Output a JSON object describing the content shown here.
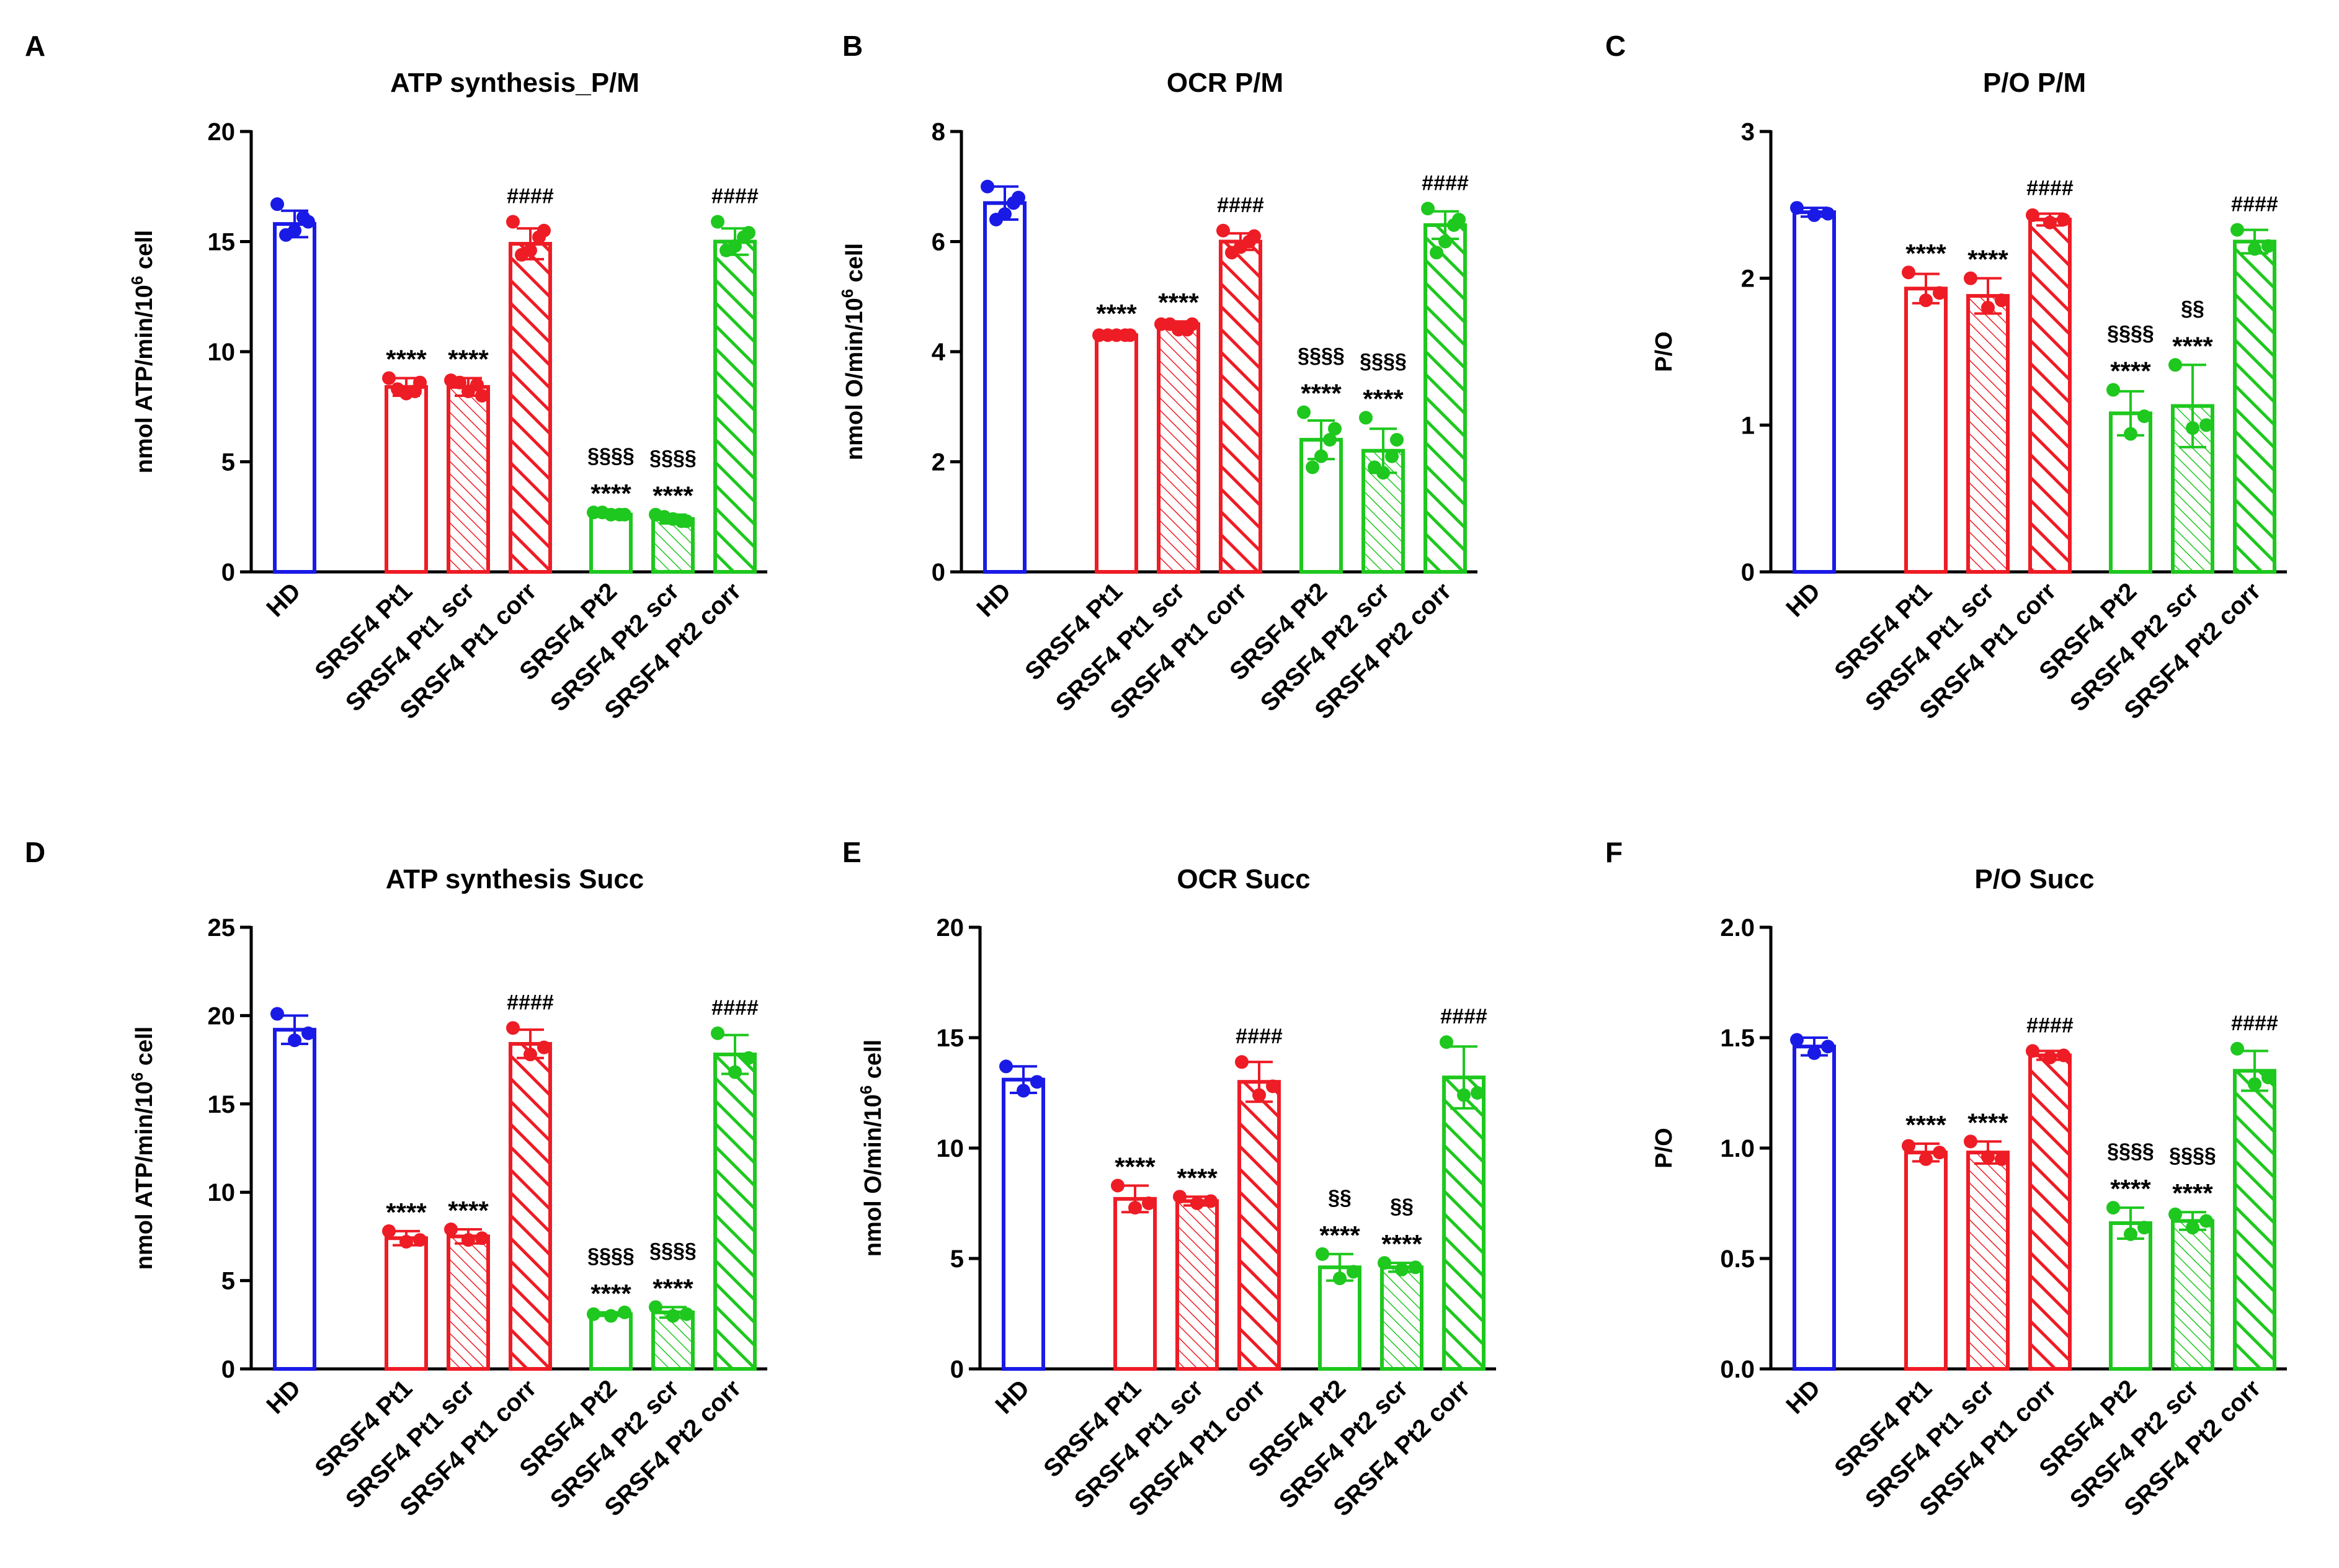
{
  "figure": {
    "categories": [
      "HD",
      "SRSF4 Pt1",
      "SRSF4 Pt1 scr",
      "SRSF4 Pt1 corr",
      "SRSF4 Pt2",
      "SRSF4 Pt2 scr",
      "SRSF4 Pt2 corr"
    ],
    "colors": {
      "hd": "#1a1ae6",
      "pt1": "#ee1c25",
      "pt2": "#1ec81e",
      "axis": "#000000"
    }
  },
  "chart_data": [
    {
      "panel": "A",
      "type": "bar",
      "title": "ATP synthesis_P/M",
      "ylabel_parts": [
        "nmol ATP/min/10",
        "6",
        " cell"
      ],
      "ylim": [
        0,
        20
      ],
      "yticks": [
        0,
        5,
        10,
        15,
        20
      ],
      "tick_decimals": 0,
      "categories": [
        "HD",
        "SRSF4 Pt1",
        "SRSF4 Pt1 scr",
        "SRSF4 Pt1 corr",
        "SRSF4 Pt2",
        "SRSF4 Pt2 scr",
        "SRSF4 Pt2 corr"
      ],
      "values": [
        15.8,
        8.4,
        8.4,
        14.9,
        2.6,
        2.4,
        15.0
      ],
      "errors": [
        0.6,
        0.4,
        0.4,
        0.7,
        0.1,
        0.2,
        0.6
      ],
      "points": [
        [
          16.7,
          15.5,
          15.9,
          15.3,
          16.1
        ],
        [
          8.8,
          8.1,
          8.6,
          8.3,
          8.2
        ],
        [
          8.7,
          8.2,
          8.0,
          8.6,
          8.5
        ],
        [
          15.9,
          14.6,
          15.5,
          14.4,
          15.2
        ],
        [
          2.7,
          2.6,
          2.6,
          2.7,
          2.6
        ],
        [
          2.6,
          2.4,
          2.3,
          2.5,
          2.3
        ],
        [
          15.9,
          14.8,
          15.4,
          14.6,
          15.2
        ]
      ],
      "annotations": [
        {
          "index": 1,
          "lines": [
            "****"
          ]
        },
        {
          "index": 2,
          "lines": [
            "****"
          ]
        },
        {
          "index": 3,
          "lines": [
            "####"
          ]
        },
        {
          "index": 4,
          "lines": [
            "§§§§",
            "****"
          ]
        },
        {
          "index": 5,
          "lines": [
            "§§§§",
            "****"
          ]
        },
        {
          "index": 6,
          "lines": [
            "####"
          ]
        }
      ]
    },
    {
      "panel": "B",
      "type": "bar",
      "title": "OCR P/M",
      "ylabel_parts": [
        "nmol O/min/10",
        "6",
        " cell"
      ],
      "ylim": [
        0,
        8
      ],
      "yticks": [
        0,
        2,
        4,
        6,
        8
      ],
      "tick_decimals": 0,
      "categories": [
        "HD",
        "SRSF4 Pt1",
        "SRSF4 Pt1 scr",
        "SRSF4 Pt1 corr",
        "SRSF4 Pt2",
        "SRSF4 Pt2 scr",
        "SRSF4 Pt2 corr"
      ],
      "values": [
        6.7,
        4.3,
        4.5,
        6.0,
        2.4,
        2.2,
        6.3
      ],
      "errors": [
        0.3,
        0.05,
        0.05,
        0.15,
        0.35,
        0.4,
        0.25
      ],
      "points": [
        [
          7.0,
          6.5,
          6.8,
          6.4,
          6.7
        ],
        [
          4.3,
          4.3,
          4.3,
          4.3,
          4.3
        ],
        [
          4.5,
          4.4,
          4.5,
          4.5,
          4.4
        ],
        [
          6.2,
          5.9,
          6.1,
          5.8,
          6.0
        ],
        [
          2.9,
          2.1,
          2.6,
          1.9,
          2.4
        ],
        [
          2.8,
          1.8,
          2.4,
          1.9,
          2.1
        ],
        [
          6.6,
          6.0,
          6.4,
          5.8,
          6.3
        ]
      ],
      "annotations": [
        {
          "index": 1,
          "lines": [
            "****"
          ]
        },
        {
          "index": 2,
          "lines": [
            "****"
          ]
        },
        {
          "index": 3,
          "lines": [
            "####"
          ]
        },
        {
          "index": 4,
          "lines": [
            "§§§§",
            "****"
          ]
        },
        {
          "index": 5,
          "lines": [
            "§§§§",
            "****"
          ]
        },
        {
          "index": 6,
          "lines": [
            "####"
          ]
        }
      ]
    },
    {
      "panel": "C",
      "type": "bar",
      "title": "P/O P/M",
      "ylabel_parts": [
        "P/O"
      ],
      "ylim": [
        0,
        3
      ],
      "yticks": [
        0,
        1,
        2,
        3
      ],
      "tick_decimals": 0,
      "categories": [
        "HD",
        "SRSF4 Pt1",
        "SRSF4 Pt1 scr",
        "SRSF4 Pt1 corr",
        "SRSF4 Pt2",
        "SRSF4 Pt2 scr",
        "SRSF4 Pt2 corr"
      ],
      "values": [
        2.45,
        1.93,
        1.88,
        2.4,
        1.08,
        1.13,
        2.25
      ],
      "errors": [
        0.03,
        0.1,
        0.12,
        0.04,
        0.15,
        0.28,
        0.08
      ],
      "points": [
        [
          2.48,
          2.43,
          2.44
        ],
        [
          2.04,
          1.85,
          1.9
        ],
        [
          2.0,
          1.8,
          1.85
        ],
        [
          2.43,
          2.38,
          2.4
        ],
        [
          1.24,
          0.94,
          1.06
        ],
        [
          1.41,
          0.98,
          1.0
        ],
        [
          2.33,
          2.2,
          2.22
        ]
      ],
      "annotations": [
        {
          "index": 1,
          "lines": [
            "****"
          ]
        },
        {
          "index": 2,
          "lines": [
            "****"
          ]
        },
        {
          "index": 3,
          "lines": [
            "####"
          ]
        },
        {
          "index": 4,
          "lines": [
            "§§§§",
            "****"
          ]
        },
        {
          "index": 5,
          "lines": [
            "§§",
            "****"
          ]
        },
        {
          "index": 6,
          "lines": [
            "####"
          ]
        }
      ]
    },
    {
      "panel": "D",
      "type": "bar",
      "title": "ATP synthesis Succ",
      "ylabel_parts": [
        "nmol ATP/min/10",
        "6",
        " cell"
      ],
      "ylim": [
        0,
        25
      ],
      "yticks": [
        0,
        5,
        10,
        15,
        20,
        25
      ],
      "tick_decimals": 0,
      "categories": [
        "HD",
        "SRSF4 Pt1",
        "SRSF4 Pt1 scr",
        "SRSF4 Pt1 corr",
        "SRSF4 Pt2",
        "SRSF4 Pt2 scr",
        "SRSF4 Pt2 corr"
      ],
      "values": [
        19.2,
        7.4,
        7.5,
        18.4,
        3.1,
        3.2,
        17.8
      ],
      "errors": [
        0.8,
        0.4,
        0.4,
        0.8,
        0.1,
        0.3,
        1.1
      ],
      "points": [
        [
          20.1,
          18.6,
          19.0
        ],
        [
          7.8,
          7.2,
          7.3
        ],
        [
          7.9,
          7.3,
          7.4
        ],
        [
          19.3,
          17.8,
          18.2
        ],
        [
          3.1,
          3.0,
          3.2
        ],
        [
          3.5,
          3.0,
          3.1
        ],
        [
          19.0,
          16.8,
          17.6
        ]
      ],
      "annotations": [
        {
          "index": 1,
          "lines": [
            "****"
          ]
        },
        {
          "index": 2,
          "lines": [
            "****"
          ]
        },
        {
          "index": 3,
          "lines": [
            "####"
          ]
        },
        {
          "index": 4,
          "lines": [
            "§§§§",
            "****"
          ]
        },
        {
          "index": 5,
          "lines": [
            "§§§§",
            "****"
          ]
        },
        {
          "index": 6,
          "lines": [
            "####"
          ]
        }
      ]
    },
    {
      "panel": "E",
      "type": "bar",
      "title": "OCR Succ",
      "ylabel_parts": [
        "nmol O/min/10",
        "6",
        " cell"
      ],
      "ylim": [
        0,
        20
      ],
      "yticks": [
        0,
        5,
        10,
        15,
        20
      ],
      "tick_decimals": 0,
      "categories": [
        "HD",
        "SRSF4 Pt1",
        "SRSF4 Pt1 scr",
        "SRSF4 Pt1 corr",
        "SRSF4 Pt2",
        "SRSF4 Pt2 scr",
        "SRSF4 Pt2 corr"
      ],
      "values": [
        13.1,
        7.7,
        7.6,
        13.0,
        4.6,
        4.6,
        13.2
      ],
      "errors": [
        0.6,
        0.6,
        0.2,
        0.9,
        0.6,
        0.2,
        1.4
      ],
      "points": [
        [
          13.7,
          12.6,
          13.0
        ],
        [
          8.3,
          7.3,
          7.5
        ],
        [
          7.8,
          7.5,
          7.6
        ],
        [
          13.9,
          12.4,
          12.8
        ],
        [
          5.2,
          4.1,
          4.4
        ],
        [
          4.8,
          4.5,
          4.6
        ],
        [
          14.8,
          12.4,
          12.5
        ]
      ],
      "annotations": [
        {
          "index": 1,
          "lines": [
            "****"
          ]
        },
        {
          "index": 2,
          "lines": [
            "****"
          ]
        },
        {
          "index": 3,
          "lines": [
            "####"
          ]
        },
        {
          "index": 4,
          "lines": [
            "§§",
            "****"
          ]
        },
        {
          "index": 5,
          "lines": [
            "§§",
            "****"
          ]
        },
        {
          "index": 6,
          "lines": [
            "####"
          ]
        }
      ]
    },
    {
      "panel": "F",
      "type": "bar",
      "title": "P/O Succ",
      "ylabel_parts": [
        "P/O"
      ],
      "ylim": [
        0,
        2.0
      ],
      "yticks": [
        0,
        0.5,
        1.0,
        1.5,
        2.0
      ],
      "tick_decimals": 1,
      "categories": [
        "HD",
        "SRSF4 Pt1",
        "SRSF4 Pt1 scr",
        "SRSF4 Pt1 corr",
        "SRSF4 Pt2",
        "SRSF4 Pt2 scr",
        "SRSF4 Pt2 corr"
      ],
      "values": [
        1.46,
        0.98,
        0.98,
        1.42,
        0.66,
        0.67,
        1.35
      ],
      "errors": [
        0.04,
        0.04,
        0.05,
        0.02,
        0.07,
        0.04,
        0.09
      ],
      "points": [
        [
          1.49,
          1.43,
          1.46
        ],
        [
          1.01,
          0.95,
          0.98
        ],
        [
          1.03,
          0.96,
          0.95
        ],
        [
          1.44,
          1.41,
          1.42
        ],
        [
          0.73,
          0.61,
          0.64
        ],
        [
          0.7,
          0.64,
          0.67
        ],
        [
          1.45,
          1.29,
          1.32
        ]
      ],
      "annotations": [
        {
          "index": 1,
          "lines": [
            "****"
          ]
        },
        {
          "index": 2,
          "lines": [
            "****"
          ]
        },
        {
          "index": 3,
          "lines": [
            "####"
          ]
        },
        {
          "index": 4,
          "lines": [
            "§§§§",
            "****"
          ]
        },
        {
          "index": 5,
          "lines": [
            "§§§§",
            "****"
          ]
        },
        {
          "index": 6,
          "lines": [
            "####"
          ]
        }
      ]
    }
  ]
}
